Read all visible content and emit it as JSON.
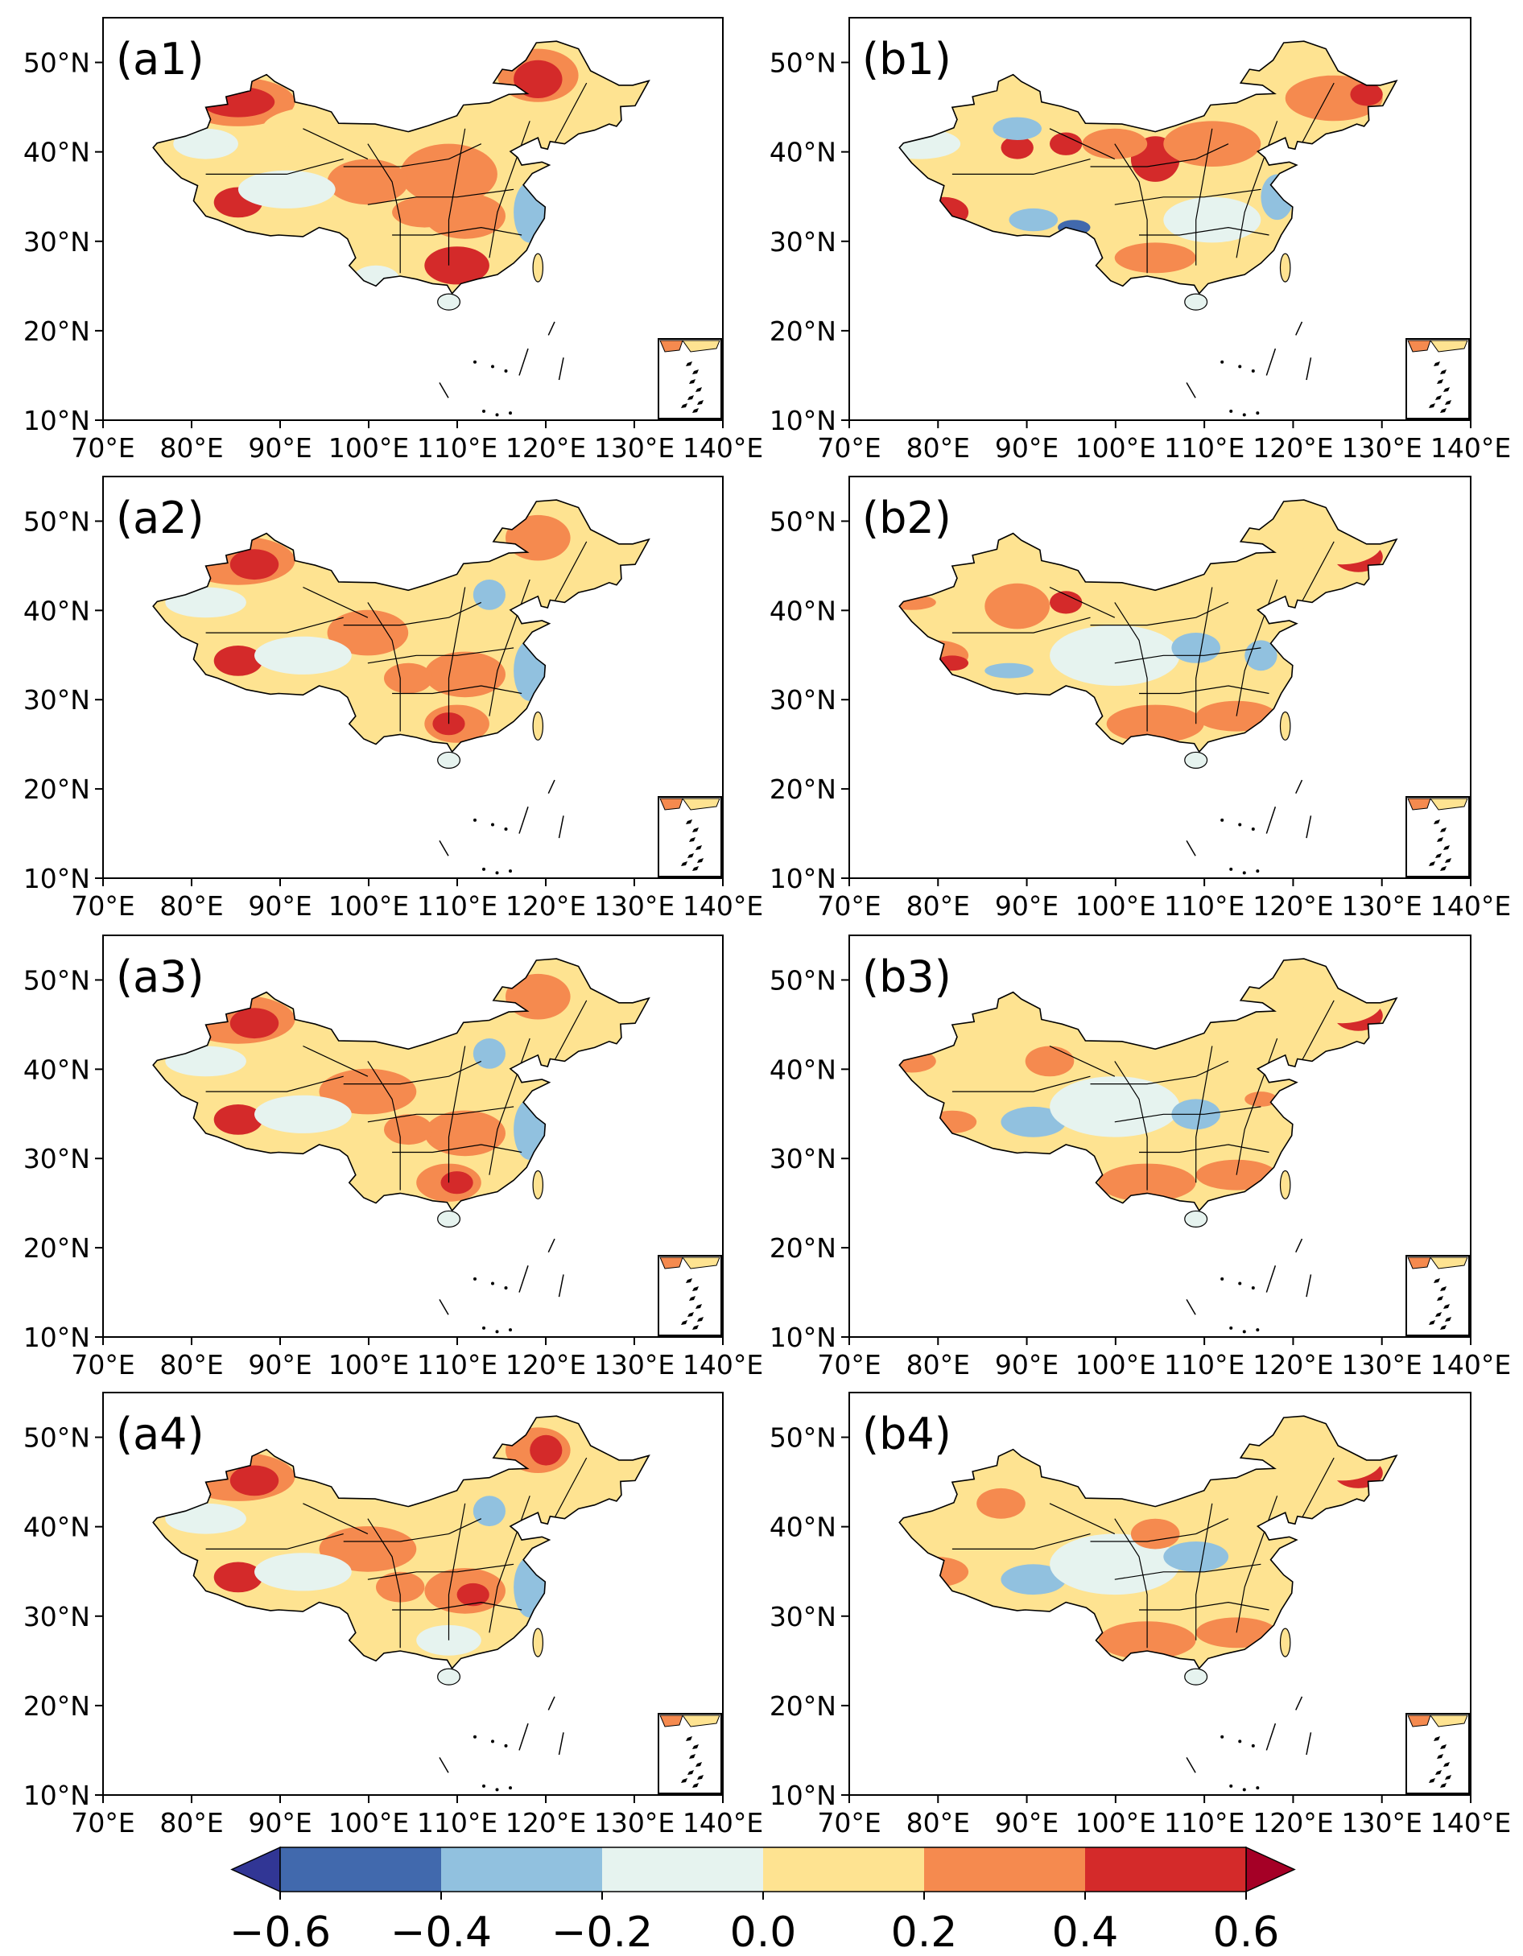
{
  "figure": {
    "lat_ticks": [
      "10°N",
      "20°N",
      "30°N",
      "40°N",
      "50°N"
    ],
    "lon_ticks": [
      "70°E",
      "80°E",
      "90°E",
      "100°E",
      "110°E",
      "120°E",
      "130°E",
      "140°E"
    ],
    "extent": {
      "lon_min": 70,
      "lon_max": 140,
      "lat_min": 10,
      "lat_max": 55
    },
    "panels": [
      {
        "id": "a1",
        "label": "(a1)"
      },
      {
        "id": "b1",
        "label": "(b1)"
      },
      {
        "id": "a2",
        "label": "(a2)"
      },
      {
        "id": "b2",
        "label": "(b2)"
      },
      {
        "id": "a3",
        "label": "(a3)"
      },
      {
        "id": "b3",
        "label": "(b3)"
      },
      {
        "id": "a4",
        "label": "(a4)"
      },
      {
        "id": "b4",
        "label": "(b4)"
      }
    ]
  },
  "colorbar": {
    "ticks": [
      "−0.6",
      "−0.4",
      "−0.2",
      "0.0",
      "0.2",
      "0.4",
      "0.6"
    ],
    "bounds": [
      -0.6,
      -0.4,
      -0.2,
      0.0,
      0.2,
      0.4,
      0.6
    ],
    "colors": [
      "#4169ad",
      "#91c1df",
      "#e6f3ef",
      "#fee391",
      "#f58a4f",
      "#d42a2a"
    ],
    "under_color": "#313695",
    "over_color": "#a50026"
  },
  "colors": {
    "deep_blue": "#4169ad",
    "light_blue": "#91c1df",
    "pale": "#e6f3ef",
    "yellow": "#fee391",
    "orange": "#f58a4f",
    "red": "#d42a2a",
    "dark_red": "#a50026"
  }
}
